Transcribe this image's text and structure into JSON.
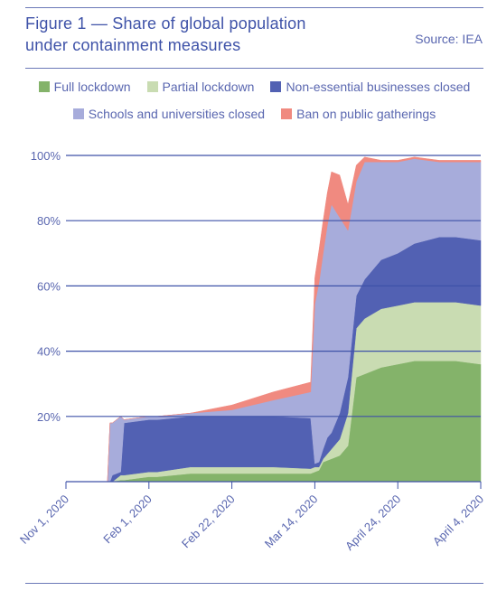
{
  "header": {
    "title_line1": "Figure 1 — Share of global population",
    "title_line2": "under containment measures",
    "source": "Source: IEA"
  },
  "chart_data": {
    "type": "area",
    "stacked": true,
    "title": "Figure 1 — Share of global population under containment measures",
    "xlabel": "",
    "ylabel": "",
    "ylim": [
      0,
      100
    ],
    "y_ticks": [
      "20%",
      "40%",
      "60%",
      "80%",
      "100%"
    ],
    "x_ticks": [
      "Nov 1, 2020",
      "Feb 1, 2020",
      "Feb 22, 2020",
      "Mar 14, 2020",
      "April 24, 2020",
      "April 4, 2020"
    ],
    "x_tick_positions": [
      0,
      10,
      20,
      30,
      40,
      50
    ],
    "grid": "horizontal",
    "legend_position": "top",
    "x": [
      0,
      5,
      5.3,
      5.6,
      6.6,
      7,
      10,
      11,
      15,
      20,
      25,
      29.5,
      30,
      30.5,
      31,
      31.5,
      32,
      33,
      34,
      35,
      36,
      38,
      40,
      42,
      45,
      47,
      50
    ],
    "series": [
      {
        "name": "Full lockdown",
        "color": "#84b36a",
        "values": [
          0,
          0,
          0,
          0,
          0.5,
          0.5,
          1.5,
          1.5,
          2.5,
          2.5,
          2.5,
          2.5,
          3,
          3.5,
          6,
          6.5,
          7,
          8,
          11,
          32,
          33,
          35,
          36,
          37,
          37,
          37,
          36
        ]
      },
      {
        "name": "Partial lockdown",
        "color": "#c9dcb2",
        "values": [
          0,
          0,
          0,
          0,
          1.5,
          1.5,
          1.5,
          1.5,
          2,
          2,
          2,
          1.5,
          1.5,
          1,
          1,
          2,
          3,
          5,
          10,
          15,
          17,
          18,
          18,
          18,
          18,
          18,
          18
        ]
      },
      {
        "name": "Non-essential businesses closed",
        "color": "#5261b3",
        "values": [
          0,
          0,
          0,
          2,
          1,
          16,
          16,
          16,
          15.5,
          15.5,
          15.5,
          15.5,
          1,
          1.5,
          3,
          5,
          5,
          8,
          11,
          10,
          12,
          15,
          16,
          18,
          20,
          20,
          20
        ]
      },
      {
        "name": "Schools and universities closed",
        "color": "#a7acdb",
        "values": [
          0,
          0,
          18,
          16,
          17,
          1,
          1,
          1,
          1,
          2,
          5,
          8,
          49,
          55,
          60,
          65,
          70,
          60,
          45,
          35,
          36,
          30,
          28,
          26,
          23,
          23,
          24
        ]
      },
      {
        "name": "Ban on public gatherings",
        "color": "#f08a80",
        "values": [
          0,
          0,
          0,
          0,
          0,
          0,
          0,
          0,
          0,
          1.5,
          2.5,
          3,
          8,
          10,
          10,
          10,
          10,
          13,
          8,
          5,
          1.5,
          0.5,
          0.5,
          0.5,
          0.5,
          0.5,
          0.5
        ]
      }
    ]
  }
}
